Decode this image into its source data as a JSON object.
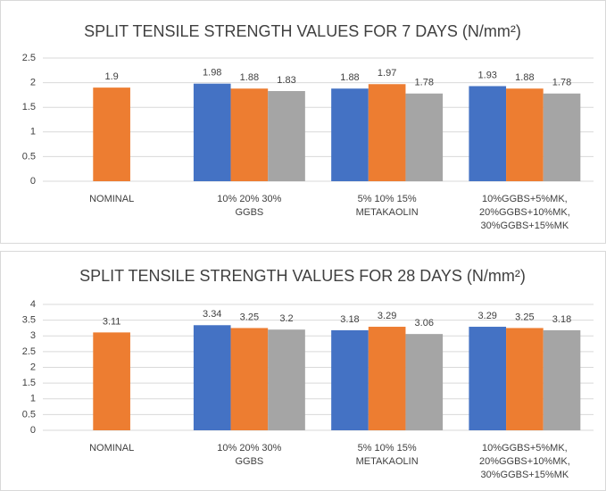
{
  "chart_data": [
    {
      "type": "bar",
      "title": "SPLIT TENSILE STRENGTH VALUES FOR 7 DAYS (N/mm²)",
      "categories": [
        [
          "NOMINAL"
        ],
        [
          "10% 20% 30%",
          "GGBS"
        ],
        [
          "5% 10% 15%",
          "METAKAOLIN"
        ],
        [
          "10%GGBS+5%MK,",
          "20%GGBS+10%MK,",
          "30%GGBS+15%MK"
        ]
      ],
      "series": [
        {
          "color": "#4472c4",
          "values": [
            null,
            1.98,
            1.88,
            1.93
          ]
        },
        {
          "color": "#ed7d31",
          "values": [
            1.9,
            1.88,
            1.97,
            1.88
          ]
        },
        {
          "color": "#a5a5a5",
          "values": [
            null,
            1.83,
            1.78,
            1.78
          ]
        }
      ],
      "ylim": [
        0,
        2.5
      ],
      "yticks": [
        0,
        0.5,
        1,
        1.5,
        2,
        2.5
      ],
      "grid": true
    },
    {
      "type": "bar",
      "title": "SPLIT TENSILE STRENGTH VALUES FOR 28 DAYS (N/mm²)",
      "categories": [
        [
          "NOMINAL"
        ],
        [
          "10% 20% 30%",
          "GGBS"
        ],
        [
          "5% 10% 15%",
          "METAKAOLIN"
        ],
        [
          "10%GGBS+5%MK,",
          "20%GGBS+10%MK,",
          "30%GGBS+15%MK"
        ]
      ],
      "series": [
        {
          "color": "#4472c4",
          "values": [
            null,
            3.34,
            3.18,
            3.29
          ]
        },
        {
          "color": "#ed7d31",
          "values": [
            3.11,
            3.25,
            3.29,
            3.25
          ]
        },
        {
          "color": "#a5a5a5",
          "values": [
            null,
            3.2,
            3.06,
            3.18
          ]
        }
      ],
      "ylim": [
        0,
        4
      ],
      "yticks": [
        0,
        0.5,
        1,
        1.5,
        2,
        2.5,
        3,
        3.5,
        4
      ],
      "grid": true
    }
  ]
}
